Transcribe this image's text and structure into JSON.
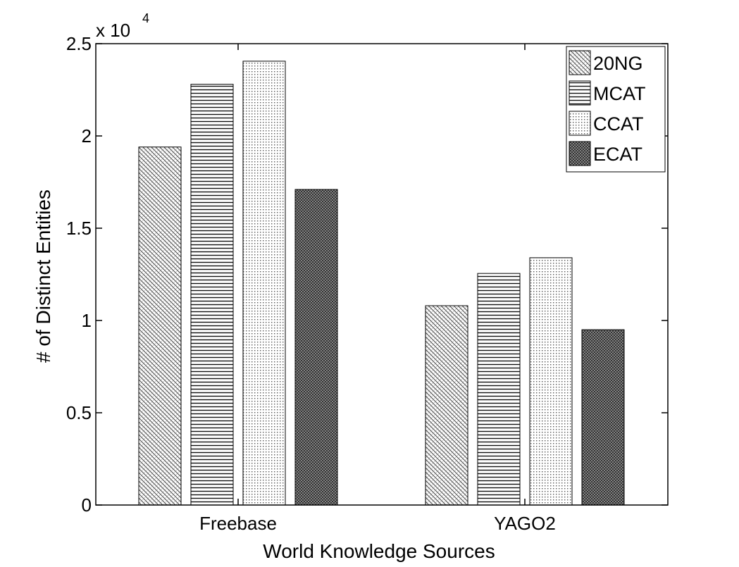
{
  "chart_data": {
    "type": "bar",
    "categories": [
      "Freebase",
      "YAGO2"
    ],
    "series": [
      {
        "name": "20NG",
        "values": [
          19400,
          10800
        ],
        "pattern": "diag"
      },
      {
        "name": "MCAT",
        "values": [
          22800,
          12550
        ],
        "pattern": "hlines"
      },
      {
        "name": "CCAT",
        "values": [
          24050,
          13400
        ],
        "pattern": "dots"
      },
      {
        "name": "ECAT",
        "values": [
          17100,
          9500
        ],
        "pattern": "dense"
      }
    ],
    "xlabel": "World Knowledge Sources",
    "ylabel": "# of Distinct Entities",
    "ylim": [
      0,
      25000
    ],
    "yticks": [
      "0",
      "0.5",
      "1",
      "1.5",
      "2",
      "2.5"
    ],
    "y_multiplier": {
      "base": "x 10",
      "exponent": "4"
    },
    "legend_position": "top-right",
    "grid": false,
    "colors": {
      "axis": "#000000",
      "background": "#ffffff"
    }
  }
}
